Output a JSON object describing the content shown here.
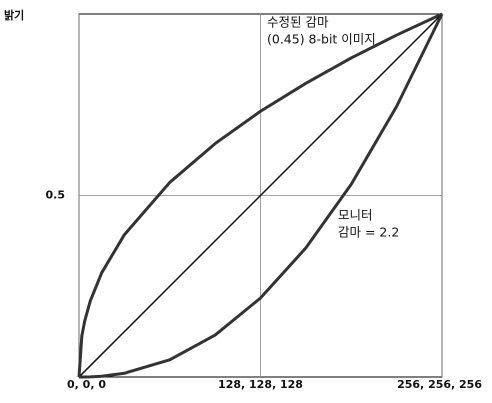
{
  "chart_data": {
    "type": "line",
    "ylabel": "밝기",
    "annotations": [
      "수정된 감마",
      "(0.45) 8-bit 이미지",
      "모니터",
      "감마 = 2.2"
    ],
    "x": [
      0,
      2,
      4,
      8,
      16,
      32,
      64,
      96,
      128,
      160,
      192,
      224,
      256
    ],
    "series": [
      {
        "color": "#333333",
        "values": [
          0,
          0.113,
          0.154,
          0.21,
          0.287,
          0.392,
          0.536,
          0.643,
          0.732,
          0.809,
          0.879,
          0.942,
          1
        ]
      },
      {
        "color": "#111111",
        "values": [
          0,
          0.0078,
          0.0156,
          0.03125,
          0.0625,
          0.125,
          0.25,
          0.375,
          0.5,
          0.625,
          0.75,
          0.875,
          1
        ]
      },
      {
        "color": "#333333",
        "values": [
          0,
          0,
          0,
          0.0005,
          0.0022,
          0.0103,
          0.0474,
          0.1156,
          0.2176,
          0.3556,
          0.531,
          0.7455,
          1
        ]
      }
    ],
    "xlim": [
      0,
      256
    ],
    "ylim": [
      0,
      1
    ],
    "xticks": [
      {
        "value": 0,
        "label": "0, 0, 0"
      },
      {
        "value": 128,
        "label": "128, 128, 128"
      },
      {
        "value": 256,
        "label": "256, 256, 256"
      }
    ],
    "yticks": [
      0.5
    ],
    "grid": true
  }
}
